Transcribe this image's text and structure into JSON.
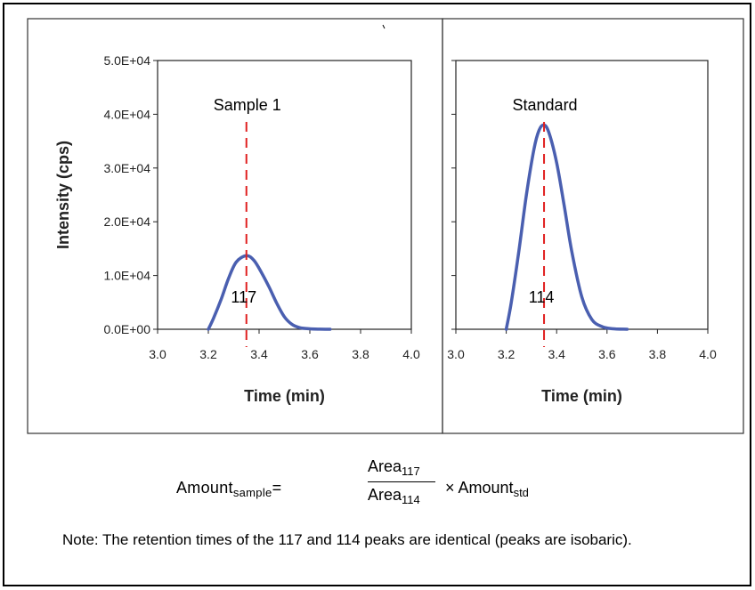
{
  "chart_data": [
    {
      "type": "line",
      "title": "",
      "annotation": "Sample 1",
      "peak_label": "117",
      "xlabel": "Time (min)",
      "ylabel": "Intensity (cps)",
      "xlim": [
        3.0,
        4.0
      ],
      "ylim": [
        0,
        50000
      ],
      "x_ticks": [
        "3.0",
        "3.2",
        "3.4",
        "3.6",
        "3.8",
        "4.0"
      ],
      "y_ticks": [
        "0.0E+00",
        "1.0E+04",
        "2.0E+04",
        "3.0E+04",
        "4.0E+04",
        "5.0E+04"
      ],
      "retention_time": 3.35,
      "series": [
        {
          "color": "#4a5fb0",
          "x": [
            3.2,
            3.22,
            3.25,
            3.28,
            3.31,
            3.35,
            3.38,
            3.41,
            3.44,
            3.47,
            3.5,
            3.53,
            3.56,
            3.6,
            3.64,
            3.68
          ],
          "y": [
            0,
            2000,
            5500,
            9500,
            12500,
            13700,
            12800,
            10500,
            7800,
            4800,
            2300,
            900,
            300,
            80,
            20,
            0
          ]
        }
      ],
      "marker_color": "#e02020"
    },
    {
      "type": "line",
      "title": "",
      "annotation": "Standard",
      "peak_label": "114",
      "xlabel": "Time (min)",
      "ylabel": "",
      "xlim": [
        3.0,
        4.0
      ],
      "ylim": [
        0,
        50000
      ],
      "x_ticks": [
        "3.0",
        "3.2",
        "3.4",
        "3.6",
        "3.8",
        "4.0"
      ],
      "y_ticks": [],
      "retention_time": 3.35,
      "series": [
        {
          "color": "#4a5fb0",
          "x": [
            3.2,
            3.22,
            3.25,
            3.28,
            3.31,
            3.33,
            3.35,
            3.37,
            3.4,
            3.43,
            3.46,
            3.5,
            3.54,
            3.58,
            3.62,
            3.68
          ],
          "y": [
            0,
            5000,
            14500,
            25000,
            33500,
            37000,
            38000,
            36500,
            31000,
            23000,
            14500,
            6000,
            1800,
            500,
            100,
            0
          ]
        }
      ],
      "marker_color": "#e02020"
    }
  ],
  "formula": {
    "lhs": "Amount",
    "lhs_sub": "sample",
    "equals": "=",
    "num": "Area",
    "num_sub": "117",
    "den": "Area",
    "den_sub": "114",
    "times": "× Amount",
    "times_sub": "std"
  },
  "note": "Note: The retention times of the 117 and 114 peaks are identical (peaks are isobaric)."
}
